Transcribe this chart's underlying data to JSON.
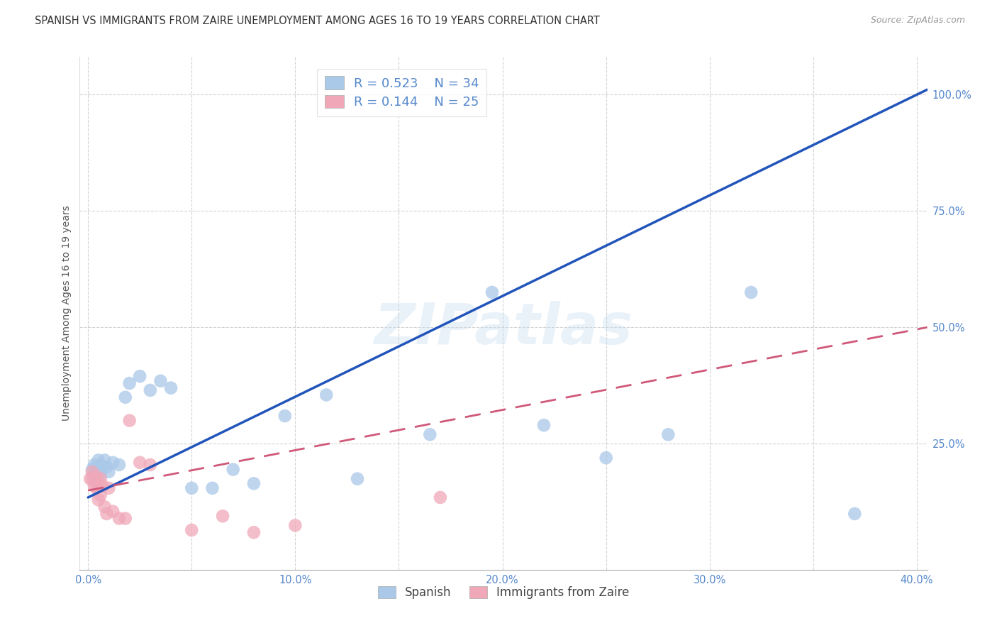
{
  "title": "SPANISH VS IMMIGRANTS FROM ZAIRE UNEMPLOYMENT AMONG AGES 16 TO 19 YEARS CORRELATION CHART",
  "source": "Source: ZipAtlas.com",
  "ylabel": "Unemployment Among Ages 16 to 19 years",
  "xlim": [
    -0.004,
    0.405
  ],
  "ylim": [
    -0.02,
    1.08
  ],
  "xtick_vals": [
    0.0,
    0.05,
    0.1,
    0.15,
    0.2,
    0.25,
    0.3,
    0.35,
    0.4
  ],
  "xticklabels": [
    "0.0%",
    "",
    "10.0%",
    "",
    "20.0%",
    "",
    "30.0%",
    "",
    "40.0%"
  ],
  "ytick_vals": [
    0.25,
    0.5,
    0.75,
    1.0
  ],
  "yticklabels": [
    "25.0%",
    "50.0%",
    "75.0%",
    "100.0%"
  ],
  "spanish_R": 0.523,
  "spanish_N": 34,
  "zaire_R": 0.144,
  "zaire_N": 25,
  "spanish_dot_color": "#aac8e8",
  "zaire_dot_color": "#f0a8b8",
  "spanish_line_color": "#2255bb",
  "zaire_line_color": "#d05878",
  "tick_color": "#5588cc",
  "grid_color": "#cccccc",
  "bg_color": "#ffffff",
  "watermark_color": "#c8ddf0",
  "spanish_line_x0": 0.0,
  "spanish_line_y0": 0.135,
  "spanish_line_x1": 0.405,
  "spanish_line_y1": 1.01,
  "zaire_line_x0": 0.0,
  "zaire_line_y0": 0.15,
  "zaire_line_x1": 0.405,
  "zaire_line_y1": 0.5,
  "spanish_x": [
    0.002,
    0.003,
    0.003,
    0.004,
    0.005,
    0.005,
    0.006,
    0.006,
    0.007,
    0.008,
    0.009,
    0.01,
    0.012,
    0.015,
    0.018,
    0.02,
    0.025,
    0.03,
    0.035,
    0.04,
    0.05,
    0.06,
    0.07,
    0.08,
    0.095,
    0.115,
    0.13,
    0.165,
    0.195,
    0.22,
    0.25,
    0.28,
    0.32,
    0.37
  ],
  "spanish_y": [
    0.195,
    0.205,
    0.185,
    0.2,
    0.215,
    0.195,
    0.205,
    0.185,
    0.2,
    0.215,
    0.2,
    0.19,
    0.21,
    0.205,
    0.35,
    0.38,
    0.395,
    0.365,
    0.385,
    0.37,
    0.155,
    0.155,
    0.195,
    0.165,
    0.31,
    0.355,
    0.175,
    0.27,
    0.575,
    0.29,
    0.22,
    0.27,
    0.575,
    0.1
  ],
  "zaire_x": [
    0.001,
    0.002,
    0.002,
    0.003,
    0.004,
    0.004,
    0.005,
    0.005,
    0.006,
    0.006,
    0.007,
    0.008,
    0.009,
    0.01,
    0.012,
    0.015,
    0.018,
    0.02,
    0.025,
    0.03,
    0.05,
    0.065,
    0.08,
    0.1,
    0.17
  ],
  "zaire_y": [
    0.175,
    0.19,
    0.175,
    0.16,
    0.18,
    0.155,
    0.165,
    0.13,
    0.175,
    0.14,
    0.16,
    0.115,
    0.1,
    0.155,
    0.105,
    0.09,
    0.09,
    0.3,
    0.21,
    0.205,
    0.065,
    0.095,
    0.06,
    0.075,
    0.135
  ]
}
